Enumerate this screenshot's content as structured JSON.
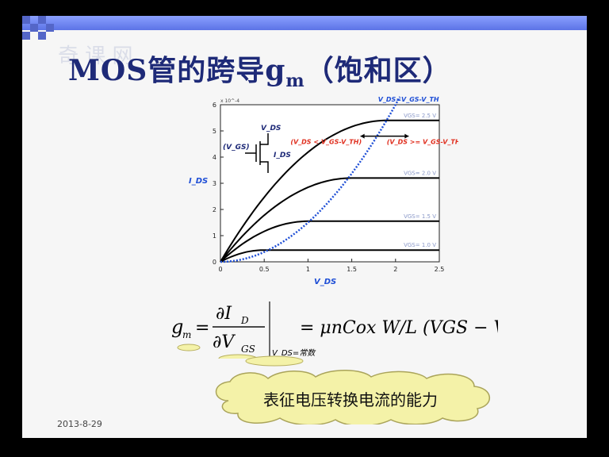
{
  "slide": {
    "title_main": "MOS管的跨导g",
    "title_sub": "m",
    "title_tail": "（饱和区）",
    "watermark": "奇 课 网",
    "date": "2013-8-29"
  },
  "colors": {
    "title": "#1e2a78",
    "curve": "#000000",
    "boundary": "#1f4fd6",
    "region_label": "#e03020",
    "vgs_label": "#8a98c8",
    "cloud": "#f4f2a8"
  },
  "chart_data": {
    "type": "line",
    "xlabel": "V_DS",
    "ylabel": "I_DS",
    "x_ticks": [
      "0",
      "0.5",
      "1",
      "1.5",
      "2",
      "2.5"
    ],
    "y_ticks": [
      "0",
      "1",
      "2",
      "3",
      "4",
      "5",
      "6"
    ],
    "y_exponent": "x 10^-4",
    "xlim": [
      0,
      2.5
    ],
    "ylim": [
      0,
      6
    ],
    "series": [
      {
        "name": "VGS= 2.5 V",
        "vov": 1.9,
        "isat": 5.4
      },
      {
        "name": "VGS= 2.0 V",
        "vov": 1.5,
        "isat": 3.2
      },
      {
        "name": "VGS= 1.5 V",
        "vov": 1.0,
        "isat": 1.55
      },
      {
        "name": "VGS= 1.0 V",
        "vov": 0.5,
        "isat": 0.45
      }
    ],
    "boundary_label": "V_DS=V_GS-V_TH",
    "region_linear": "(V_DS < V_GS-V_TH)",
    "region_sat": "(V_DS >= V_GS-V_TH)",
    "inset": {
      "vgs": "(V_GS)",
      "vds": "V_DS",
      "ids": "I_DS"
    }
  },
  "formula": {
    "lhs": "g",
    "lhs_sub": "m",
    "equals": "=",
    "num": "∂I",
    "num_sub": "D",
    "den": "∂V",
    "den_sub": "GS",
    "cond": "V_DS=常数",
    "rhs": "= μnCox W/L (VGS − VTH)"
  },
  "cloud_text": "表征电压转换电流的能力"
}
